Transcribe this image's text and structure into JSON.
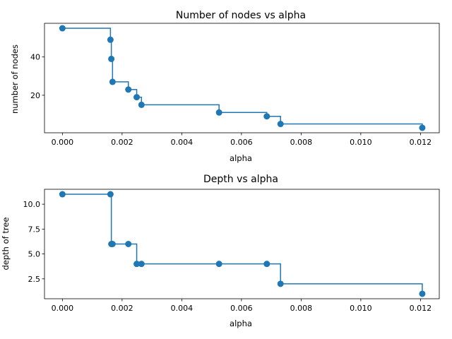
{
  "chart_data": [
    {
      "type": "line",
      "drawstyle": "steps-post",
      "markers": true,
      "title": "Number of nodes vs alpha",
      "xlabel": "alpha",
      "ylabel": "number of nodes",
      "xlim": [
        -0.0006,
        0.01263
      ],
      "ylim": [
        0.4,
        57.6
      ],
      "xticks": [
        0.0,
        0.002,
        0.004,
        0.006,
        0.008,
        0.01,
        0.012
      ],
      "xtick_labels": [
        "0.000",
        "0.002",
        "0.004",
        "0.006",
        "0.008",
        "0.010",
        "0.012"
      ],
      "yticks": [
        20,
        40
      ],
      "ytick_labels": [
        "20",
        "40"
      ],
      "grid": false,
      "color": "#1f77b4",
      "x": [
        0.0,
        0.00161,
        0.00164,
        0.00168,
        0.00221,
        0.00249,
        0.00265,
        0.00525,
        0.00685,
        0.00731,
        0.01206
      ],
      "y": [
        55,
        49,
        39,
        27,
        23,
        19,
        15,
        11,
        9,
        5,
        3
      ]
    },
    {
      "type": "line",
      "drawstyle": "steps-post",
      "markers": true,
      "title": "Depth vs alpha",
      "xlabel": "alpha",
      "ylabel": "depth of tree",
      "xlim": [
        -0.0006,
        0.01263
      ],
      "ylim": [
        0.5,
        11.5
      ],
      "xticks": [
        0.0,
        0.002,
        0.004,
        0.006,
        0.008,
        0.01,
        0.012
      ],
      "xtick_labels": [
        "0.000",
        "0.002",
        "0.004",
        "0.006",
        "0.008",
        "0.010",
        "0.012"
      ],
      "yticks": [
        2.5,
        5.0,
        7.5,
        10.0
      ],
      "ytick_labels": [
        "2.5",
        "5.0",
        "7.5",
        "10.0"
      ],
      "grid": false,
      "color": "#1f77b4",
      "x": [
        0.0,
        0.00161,
        0.00164,
        0.00168,
        0.00221,
        0.00249,
        0.00265,
        0.00525,
        0.00685,
        0.00731,
        0.01206
      ],
      "y": [
        11,
        11,
        6,
        6,
        6,
        4,
        4,
        4,
        4,
        2,
        1
      ]
    }
  ]
}
